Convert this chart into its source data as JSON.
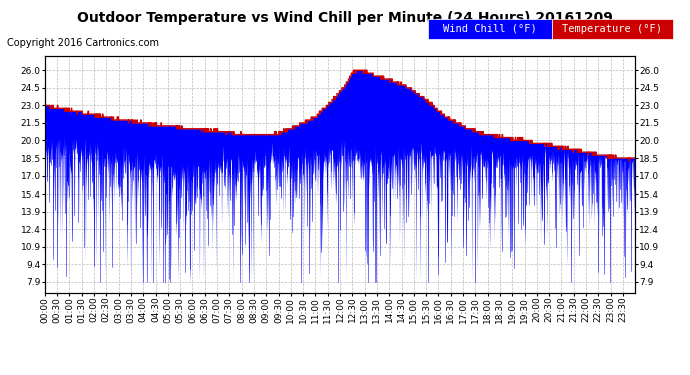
{
  "title": "Outdoor Temperature vs Wind Chill per Minute (24 Hours) 20161209",
  "copyright": "Copyright 2016 Cartronics.com",
  "wind_chill_label": "Wind Chill (°F)",
  "temp_label": "Temperature (°F)",
  "wind_chill_color": "#0000FF",
  "temp_color": "#CC0000",
  "wind_chill_bg": "#0000FF",
  "temp_bg": "#CC0000",
  "background_color": "#FFFFFF",
  "plot_bg_color": "#FFFFFF",
  "grid_color": "#AAAAAA",
  "yticks": [
    7.9,
    9.4,
    10.9,
    12.4,
    13.9,
    15.4,
    17.0,
    18.5,
    20.0,
    21.5,
    23.0,
    24.5,
    26.0
  ],
  "ylim": [
    7.0,
    27.2
  ],
  "n_minutes": 1440,
  "title_fontsize": 10,
  "copyright_fontsize": 7,
  "legend_fontsize": 7.5,
  "tick_fontsize": 6.5,
  "wind_chill_seed": 42,
  "temp_seed": 99
}
